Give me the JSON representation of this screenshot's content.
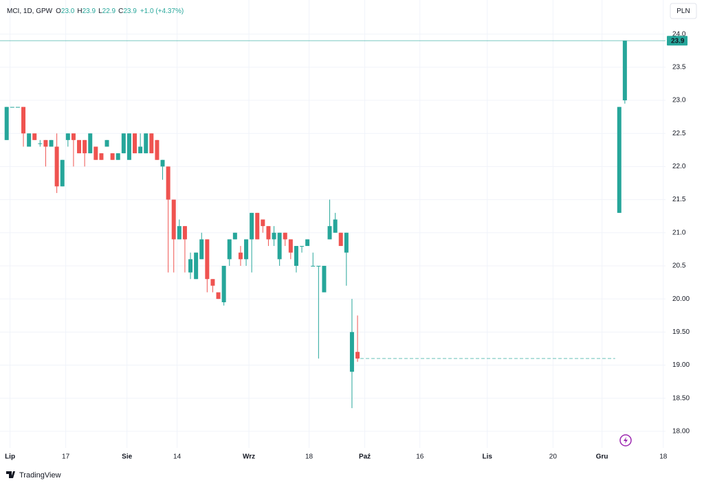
{
  "chart_data": {
    "type": "candlestick",
    "header": {
      "symbol": "MCI, 1D, GPW",
      "ohlc": [
        {
          "label": "O",
          "value": "23.0"
        },
        {
          "label": "H",
          "value": "23.9"
        },
        {
          "label": "L",
          "value": "22.9"
        },
        {
          "label": "C",
          "value": "23.9"
        }
      ],
      "change": "+1.0 (+4.37%)"
    },
    "currency": "PLN",
    "brand": "TradingView",
    "up_color": "#26a69a",
    "down_color": "#ef5350",
    "x": [
      0,
      1,
      2,
      3,
      4,
      5,
      6,
      7,
      8,
      9,
      10,
      11,
      12,
      13,
      14,
      15,
      16,
      17,
      18,
      19,
      20,
      21,
      22,
      23,
      24,
      25,
      26,
      27,
      28,
      29,
      30,
      31,
      32,
      33,
      34,
      35,
      36,
      37,
      38,
      39,
      40,
      41,
      42,
      43,
      44,
      45,
      46,
      47,
      48,
      49,
      50,
      51,
      52,
      53,
      54,
      55,
      56,
      57,
      58,
      59,
      60,
      61,
      62,
      63,
      110,
      111
    ],
    "open": [
      22.4,
      22.9,
      22.9,
      22.9,
      22.3,
      22.5,
      22.35,
      22.4,
      22.3,
      22.3,
      21.7,
      22.4,
      22.5,
      22.4,
      22.4,
      22.2,
      22.3,
      22.2,
      22.3,
      22.2,
      22.1,
      22.2,
      22.1,
      22.5,
      22.2,
      22.2,
      22.5,
      22.4,
      22.0,
      22.0,
      21.5,
      20.9,
      21.1,
      20.4,
      20.3,
      20.6,
      20.9,
      20.3,
      20.1,
      19.95,
      20.6,
      20.9,
      20.7,
      20.6,
      20.9,
      21.3,
      21.2,
      21.1,
      20.9,
      20.6,
      21.0,
      20.9,
      20.5,
      20.8,
      20.8,
      20.5,
      20.5,
      20.1,
      20.9,
      21.0,
      21.0,
      20.7,
      18.9,
      19.2,
      21.3,
      23.0
    ],
    "high": [
      22.9,
      22.9,
      22.9,
      22.9,
      22.5,
      22.5,
      22.4,
      22.4,
      22.4,
      22.5,
      22.1,
      22.5,
      22.5,
      22.4,
      22.4,
      22.5,
      22.3,
      22.2,
      22.4,
      22.2,
      22.2,
      22.5,
      22.5,
      22.5,
      22.5,
      22.5,
      22.5,
      22.4,
      22.1,
      22.0,
      21.5,
      21.2,
      21.1,
      20.7,
      20.7,
      21.0,
      20.9,
      20.3,
      20.1,
      20.5,
      20.9,
      21.0,
      20.8,
      20.9,
      21.3,
      21.3,
      21.2,
      21.1,
      21.1,
      21.0,
      21.0,
      20.9,
      20.8,
      20.8,
      20.9,
      20.7,
      20.5,
      20.5,
      21.5,
      21.3,
      21.0,
      21.0,
      20.0,
      19.75,
      22.9,
      23.9
    ],
    "low": [
      22.4,
      22.9,
      22.9,
      22.3,
      22.3,
      22.4,
      22.3,
      22.0,
      22.3,
      21.6,
      21.7,
      22.3,
      22.0,
      22.2,
      22.0,
      22.2,
      22.1,
      22.1,
      22.3,
      22.1,
      22.1,
      22.2,
      22.1,
      22.2,
      22.2,
      22.2,
      22.2,
      22.1,
      21.8,
      20.4,
      20.4,
      20.9,
      20.4,
      20.3,
      20.3,
      20.6,
      20.1,
      20.1,
      20.0,
      19.9,
      20.5,
      20.9,
      20.5,
      20.5,
      20.4,
      20.9,
      21.0,
      20.8,
      20.8,
      20.5,
      20.8,
      20.6,
      20.4,
      20.7,
      20.8,
      20.5,
      19.1,
      20.1,
      20.9,
      21.0,
      20.8,
      20.2,
      18.35,
      19.05,
      21.3,
      22.95
    ],
    "close": [
      22.9,
      22.9,
      22.9,
      22.5,
      22.5,
      22.4,
      22.35,
      22.3,
      22.4,
      21.7,
      22.1,
      22.5,
      22.4,
      22.2,
      22.2,
      22.5,
      22.1,
      22.1,
      22.4,
      22.1,
      22.2,
      22.5,
      22.5,
      22.2,
      22.3,
      22.5,
      22.2,
      22.1,
      22.1,
      21.5,
      20.9,
      21.1,
      20.9,
      20.6,
      20.7,
      20.9,
      20.3,
      20.2,
      20.0,
      20.5,
      20.9,
      21.0,
      20.6,
      20.9,
      21.3,
      20.9,
      21.1,
      20.9,
      21.0,
      21.0,
      20.9,
      20.7,
      20.8,
      20.8,
      20.9,
      20.5,
      20.5,
      20.5,
      21.1,
      21.2,
      20.8,
      21.0,
      19.5,
      19.1,
      22.9,
      23.9
    ],
    "last_price": {
      "value": 23.9,
      "label": "23.9"
    },
    "dashed_level": 19.1,
    "xlim": [
      -1.2,
      118.3
    ],
    "xticks": [
      {
        "value": 0.6,
        "label": "Lip"
      },
      {
        "value": 10.6,
        "label": "17"
      },
      {
        "value": 21.6,
        "label": "Sie"
      },
      {
        "value": 30.6,
        "label": "14"
      },
      {
        "value": 43.5,
        "label": "Wrz"
      },
      {
        "value": 54.3,
        "label": "18"
      },
      {
        "value": 64.3,
        "label": "Paź"
      },
      {
        "value": 74.2,
        "label": "16"
      },
      {
        "value": 86.3,
        "label": "Lis"
      },
      {
        "value": 98.1,
        "label": "20"
      },
      {
        "value": 106.9,
        "label": "Gru"
      },
      {
        "value": 117.9,
        "label": "18"
      }
    ],
    "ylim": [
      17.75,
      24.1
    ],
    "yticks": [
      {
        "value": 24,
        "label": "24.0"
      },
      23.5,
      {
        "value": 23,
        "label": "23.0"
      },
      22.5,
      {
        "value": 22,
        "label": "22.0"
      },
      21.5,
      {
        "value": 21,
        "label": "21.0"
      },
      20.5,
      {
        "value": 20,
        "label": "20.00"
      },
      {
        "value": 19.5,
        "label": "19.50"
      },
      {
        "value": 19,
        "label": "19.00"
      },
      {
        "value": 18.5,
        "label": "18.50"
      },
      {
        "value": 18,
        "label": "18.00"
      }
    ],
    "grid": true
  }
}
